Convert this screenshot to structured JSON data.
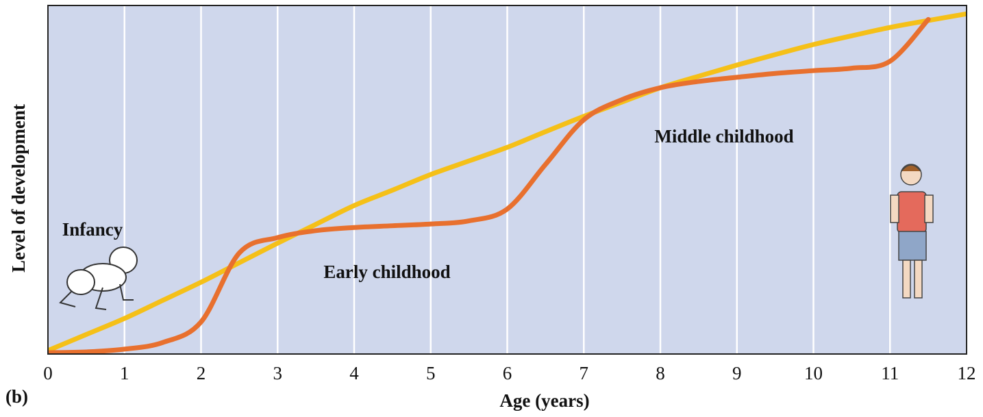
{
  "chart_data": {
    "type": "line",
    "title_label": "(b)",
    "x_label": "Age (years)",
    "y_label": "Level of development",
    "annotations": [
      "Infancy",
      "Early childhood",
      "Middle childhood"
    ],
    "x": [
      0,
      0.5,
      1,
      1.5,
      2,
      2.5,
      3,
      3.5,
      4,
      4.5,
      5,
      5.5,
      6,
      6.5,
      7,
      7.5,
      8,
      8.5,
      9,
      9.5,
      10,
      10.5,
      11,
      11.5,
      12
    ],
    "series": [
      {
        "color": "#f5c018",
        "values": [
          1,
          5.6,
          10.2,
          15.4,
          20.6,
          26.2,
          31.8,
          37.2,
          42.6,
          47,
          51.5,
          55.4,
          59.3,
          63.8,
          68.2,
          72.3,
          76.4,
          79.7,
          82.9,
          85.9,
          88.8,
          91.3,
          93.7,
          95.7,
          97.6
        ]
      },
      {
        "color": "#e8702e",
        "values": [
          0.4,
          0.6,
          1.4,
          3.3,
          9.2,
          29,
          33.4,
          35.4,
          36.3,
          36.8,
          37.3,
          38.2,
          41.6,
          54.4,
          67.2,
          73,
          76.4,
          78.2,
          79.4,
          80.5,
          81.3,
          82,
          84,
          96,
          null
        ]
      }
    ],
    "xlim": [
      0,
      12
    ],
    "xticks": [
      0,
      1,
      2,
      3,
      4,
      5,
      6,
      7,
      8,
      9,
      10,
      11,
      12
    ],
    "ylim": [
      0,
      100
    ],
    "grid": true,
    "background": "#cfd7ec"
  }
}
